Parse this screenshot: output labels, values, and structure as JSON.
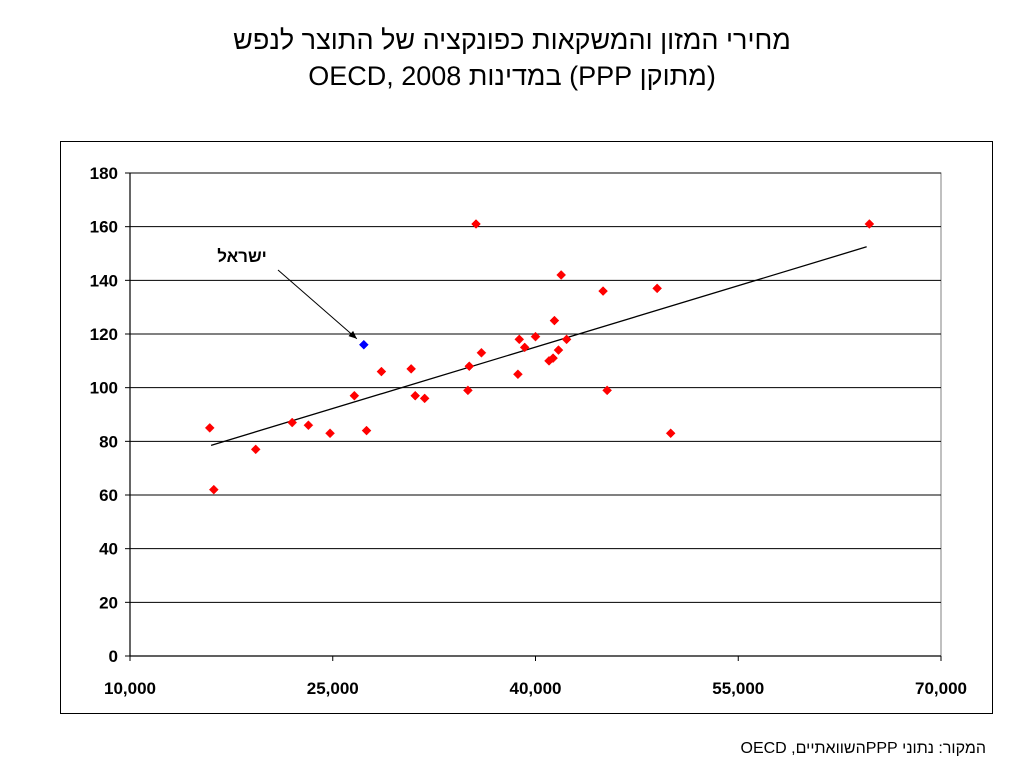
{
  "title": {
    "line1": "מחירי המזון והמשקאות כפונקציה של התוצר לנפש",
    "line2": "(מתוקן PPP) במדינות OECD, 2008"
  },
  "source": "המקור: נתוני PPPהשוואתיים, OECD",
  "chart_data": {
    "type": "scatter",
    "title": "מחירי המזון והמשקאות כפונקציה של התוצר לנפש (מתוקן PPP) במדינות OECD, 2008",
    "xlabel": "",
    "ylabel": "",
    "xlim": [
      10000,
      70000
    ],
    "ylim": [
      0,
      180
    ],
    "x_ticks": [
      10000,
      25000,
      40000,
      55000,
      70000
    ],
    "x_tick_labels": [
      "10,000",
      "25,000",
      "40,000",
      "55,000",
      "70,000"
    ],
    "y_ticks": [
      0,
      20,
      40,
      60,
      80,
      100,
      120,
      140,
      160,
      180
    ],
    "y_tick_labels": [
      "0",
      "20",
      "40",
      "60",
      "80",
      "100",
      "120",
      "140",
      "160",
      "180"
    ],
    "grid": "horizontal",
    "colors": {
      "points": "#ff0000",
      "highlight": "#0000ff",
      "trend": "#000000"
    },
    "points": [
      [
        15900,
        85
      ],
      [
        16200,
        62
      ],
      [
        19300,
        77
      ],
      [
        22000,
        87
      ],
      [
        23200,
        86
      ],
      [
        24800,
        83
      ],
      [
        26600,
        97
      ],
      [
        27500,
        84
      ],
      [
        28600,
        106
      ],
      [
        30800,
        107
      ],
      [
        31100,
        97
      ],
      [
        31800,
        96
      ],
      [
        35000,
        99
      ],
      [
        35100,
        108
      ],
      [
        35600,
        161
      ],
      [
        36000,
        113
      ],
      [
        38700,
        105
      ],
      [
        38800,
        118
      ],
      [
        39200,
        115
      ],
      [
        40000,
        119
      ],
      [
        41000,
        110
      ],
      [
        41300,
        111
      ],
      [
        41400,
        125
      ],
      [
        41700,
        114
      ],
      [
        41900,
        142
      ],
      [
        42300,
        118
      ],
      [
        45000,
        136
      ],
      [
        45300,
        99
      ],
      [
        49000,
        137
      ],
      [
        50000,
        83
      ],
      [
        64700,
        161
      ]
    ],
    "highlight": {
      "label": "ישראל",
      "x": 27300,
      "y": 116
    },
    "trendline": {
      "x": [
        16000,
        64500
      ],
      "y": [
        78.5,
        152.5
      ]
    }
  }
}
